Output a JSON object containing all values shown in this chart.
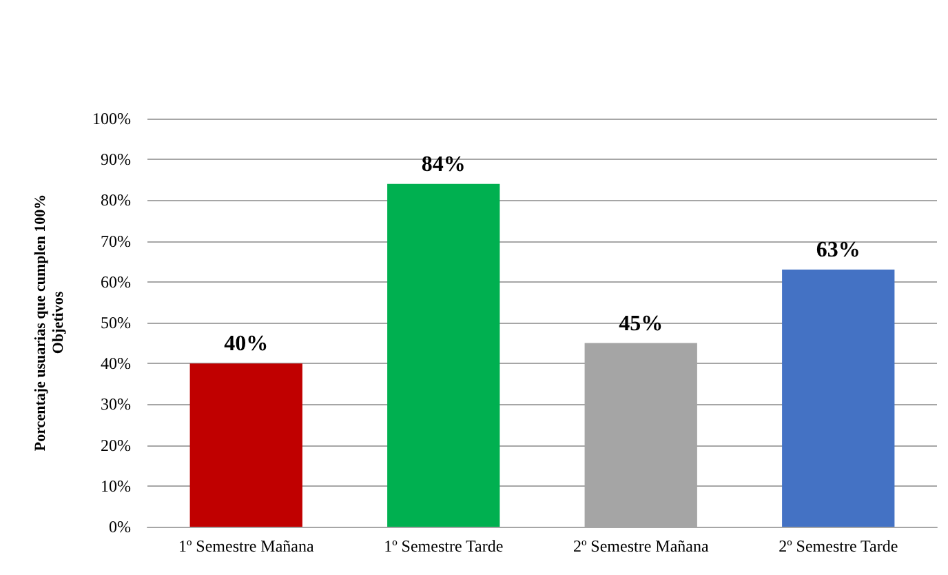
{
  "chart_data": {
    "type": "bar",
    "ylabel": "Porcentaje usuarias que cumplen 100%\nObjetivos",
    "categories": [
      "1º Semestre Mañana",
      "1º Semestre Tarde",
      "2º Semestre Mañana",
      "2º Semestre Tarde"
    ],
    "values": [
      40,
      84,
      45,
      63
    ],
    "colors": [
      "#c00000",
      "#00b050",
      "#a5a5a5",
      "#4472c4"
    ],
    "value_labels": [
      "40%",
      "84%",
      "45%",
      "63%"
    ],
    "ylim": [
      0,
      100
    ],
    "yticks": [
      {
        "value": 0,
        "label": "0%"
      },
      {
        "value": 10,
        "label": "10%"
      },
      {
        "value": 20,
        "label": "20%"
      },
      {
        "value": 30,
        "label": "30%"
      },
      {
        "value": 40,
        "label": "40%"
      },
      {
        "value": 50,
        "label": "50%"
      },
      {
        "value": 60,
        "label": "60%"
      },
      {
        "value": 70,
        "label": "70%"
      },
      {
        "value": 80,
        "label": "80%"
      },
      {
        "value": 90,
        "label": "90%"
      },
      {
        "value": 100,
        "label": "100%"
      }
    ],
    "grid": true
  }
}
